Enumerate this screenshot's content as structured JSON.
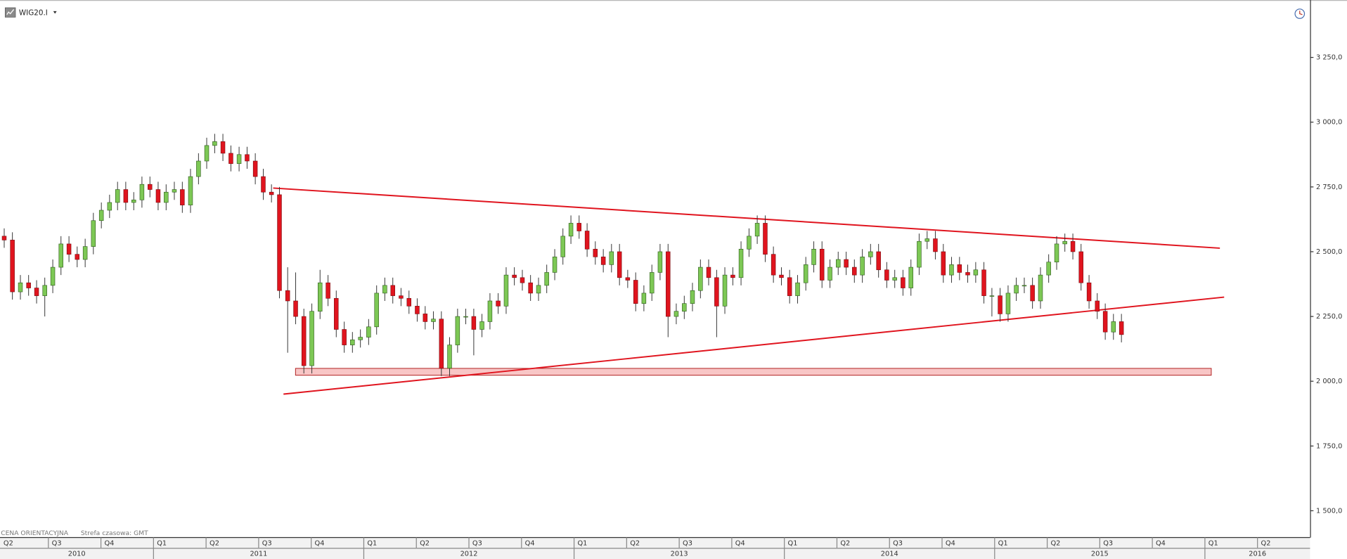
{
  "chart_data": {
    "type": "candlestick",
    "title": "WIG20.I",
    "note": "CENA ORIENTACYJNA",
    "timezone": "Strefa czasowa: GMT",
    "up_color": "#7dc855",
    "down_color": "#e0141e",
    "wick_color": "#333333",
    "ylim": [
      1400,
      3455
    ],
    "yticks": [
      {
        "value": 1500,
        "label": "1 500,0"
      },
      {
        "value": 1750,
        "label": "1 750,0"
      },
      {
        "value": 2000,
        "label": "2 000,0"
      },
      {
        "value": 2250,
        "label": "2 250,0"
      },
      {
        "value": 2500,
        "label": "2 500,0"
      },
      {
        "value": 2750,
        "label": "2 750,0"
      },
      {
        "value": 3000,
        "label": "3 000,0"
      },
      {
        "value": 3250,
        "label": "3 250,0"
      }
    ],
    "xlim": [
      2010.27,
      2016.5
    ],
    "xticks": [
      {
        "value": 2010.25,
        "label": "Q2"
      },
      {
        "value": 2010.5,
        "label": "Q3"
      },
      {
        "value": 2010.75,
        "label": "Q4"
      },
      {
        "value": 2011,
        "label": "Q1"
      },
      {
        "value": 2011.25,
        "label": "Q2"
      },
      {
        "value": 2011.5,
        "label": "Q3"
      },
      {
        "value": 2011.75,
        "label": "Q4"
      },
      {
        "value": 2012,
        "label": "Q1"
      },
      {
        "value": 2012.25,
        "label": "Q2"
      },
      {
        "value": 2012.5,
        "label": "Q3"
      },
      {
        "value": 2012.75,
        "label": "Q4"
      },
      {
        "value": 2013,
        "label": "Q1"
      },
      {
        "value": 2013.25,
        "label": "Q2"
      },
      {
        "value": 2013.5,
        "label": "Q3"
      },
      {
        "value": 2013.75,
        "label": "Q4"
      },
      {
        "value": 2014,
        "label": "Q1"
      },
      {
        "value": 2014.25,
        "label": "Q2"
      },
      {
        "value": 2014.5,
        "label": "Q3"
      },
      {
        "value": 2014.75,
        "label": "Q4"
      },
      {
        "value": 2015,
        "label": "Q1"
      },
      {
        "value": 2015.25,
        "label": "Q2"
      },
      {
        "value": 2015.5,
        "label": "Q3"
      },
      {
        "value": 2015.75,
        "label": "Q4"
      },
      {
        "value": 2016,
        "label": "Q1"
      },
      {
        "value": 2016.25,
        "label": "Q2"
      }
    ],
    "xticks_major": [
      2010,
      2011,
      2012,
      2013,
      2014,
      2015,
      2016
    ],
    "x": [
      2010.29,
      2010.329,
      2010.367,
      2010.406,
      2010.444,
      2010.483,
      2010.521,
      2010.56,
      2010.598,
      2010.637,
      2010.675,
      2010.714,
      2010.752,
      2010.791,
      2010.829,
      2010.868,
      2010.906,
      2010.945,
      2010.983,
      2011.022,
      2011.06,
      2011.099,
      2011.137,
      2011.176,
      2011.214,
      2011.253,
      2011.291,
      2011.33,
      2011.368,
      2011.407,
      2011.445,
      2011.484,
      2011.522,
      2011.561,
      2011.599,
      2011.638,
      2011.676,
      2011.715,
      2011.753,
      2011.792,
      2011.83,
      2011.869,
      2011.907,
      2011.946,
      2011.984,
      2012.023,
      2012.061,
      2012.1,
      2012.138,
      2012.177,
      2012.215,
      2012.254,
      2012.292,
      2012.331,
      2012.369,
      2012.408,
      2012.446,
      2012.485,
      2012.523,
      2012.562,
      2012.6,
      2012.639,
      2012.677,
      2012.716,
      2012.754,
      2012.793,
      2012.831,
      2012.87,
      2012.908,
      2012.947,
      2012.985,
      2013.024,
      2013.062,
      2013.101,
      2013.139,
      2013.178,
      2013.216,
      2013.255,
      2013.293,
      2013.332,
      2013.37,
      2013.409,
      2013.447,
      2013.486,
      2013.524,
      2013.563,
      2013.601,
      2013.64,
      2013.678,
      2013.717,
      2013.755,
      2013.794,
      2013.832,
      2013.871,
      2013.909,
      2013.948,
      2013.986,
      2014.025,
      2014.063,
      2014.102,
      2014.14,
      2014.179,
      2014.217,
      2014.256,
      2014.294,
      2014.333,
      2014.371,
      2014.41,
      2014.448,
      2014.487,
      2014.525,
      2014.564,
      2014.602,
      2014.641,
      2014.679,
      2014.718,
      2014.756,
      2014.795,
      2014.833,
      2014.872,
      2014.91,
      2014.949,
      2014.987,
      2015.026,
      2015.064,
      2015.103,
      2015.141,
      2015.18,
      2015.218,
      2015.257,
      2015.295,
      2015.334,
      2015.372,
      2015.411,
      2015.449,
      2015.488,
      2015.526,
      2015.565,
      2015.603
    ],
    "series": [
      {
        "name": "WIG20.I",
        "open": [
          2560,
          2545,
          2345,
          2380,
          2360,
          2330,
          2370,
          2440,
          2530,
          2490,
          2470,
          2520,
          2620,
          2660,
          2690,
          2740,
          2690,
          2700,
          2760,
          2740,
          2690,
          2730,
          2740,
          2680,
          2790,
          2850,
          2910,
          2925,
          2880,
          2840,
          2875,
          2850,
          2790,
          2730,
          2720,
          2350,
          2310,
          2250,
          2060,
          2270,
          2380,
          2320,
          2200,
          2140,
          2160,
          2170,
          2210,
          2340,
          2370,
          2330,
          2320,
          2290,
          2260,
          2230,
          2240,
          2050,
          2140,
          2250,
          2250,
          2200,
          2230,
          2310,
          2290,
          2410,
          2400,
          2380,
          2340,
          2370,
          2420,
          2480,
          2560,
          2610,
          2580,
          2510,
          2480,
          2450,
          2500,
          2400,
          2390,
          2300,
          2340,
          2420,
          2500,
          2250,
          2270,
          2300,
          2350,
          2440,
          2400,
          2290,
          2410,
          2400,
          2510,
          2560,
          2610,
          2490,
          2410,
          2400,
          2330,
          2380,
          2450,
          2510,
          2390,
          2440,
          2470,
          2440,
          2410,
          2480,
          2500,
          2430,
          2390,
          2400,
          2360,
          2440,
          2540,
          2550,
          2500,
          2410,
          2450,
          2420,
          2410,
          2430,
          2330,
          2330,
          2260,
          2340,
          2370,
          2370,
          2310,
          2410,
          2460,
          2530,
          2540,
          2500,
          2380,
          2310,
          2270,
          2190,
          2230
        ],
        "high": [
          2590,
          2575,
          2410,
          2410,
          2390,
          2400,
          2470,
          2560,
          2560,
          2520,
          2550,
          2650,
          2690,
          2720,
          2770,
          2770,
          2730,
          2790,
          2790,
          2770,
          2760,
          2770,
          2770,
          2820,
          2880,
          2940,
          2955,
          2955,
          2910,
          2905,
          2905,
          2880,
          2820,
          2760,
          2750,
          2440,
          2420,
          2280,
          2300,
          2430,
          2410,
          2350,
          2230,
          2190,
          2200,
          2240,
          2370,
          2400,
          2400,
          2360,
          2350,
          2320,
          2290,
          2270,
          2270,
          2170,
          2280,
          2280,
          2280,
          2260,
          2340,
          2340,
          2440,
          2440,
          2430,
          2410,
          2400,
          2450,
          2510,
          2590,
          2640,
          2640,
          2610,
          2540,
          2510,
          2530,
          2530,
          2430,
          2420,
          2370,
          2450,
          2530,
          2530,
          2300,
          2330,
          2380,
          2470,
          2470,
          2430,
          2440,
          2440,
          2540,
          2590,
          2640,
          2640,
          2520,
          2440,
          2430,
          2410,
          2480,
          2540,
          2540,
          2470,
          2500,
          2500,
          2470,
          2510,
          2530,
          2530,
          2460,
          2430,
          2430,
          2470,
          2570,
          2580,
          2580,
          2530,
          2480,
          2480,
          2450,
          2460,
          2460,
          2360,
          2360,
          2370,
          2400,
          2400,
          2400,
          2440,
          2490,
          2560,
          2570,
          2570,
          2530,
          2410,
          2340,
          2300,
          2260,
          2260
        ],
        "low": [
          2515,
          2315,
          2315,
          2330,
          2300,
          2250,
          2340,
          2410,
          2460,
          2440,
          2440,
          2490,
          2590,
          2630,
          2660,
          2660,
          2660,
          2670,
          2710,
          2660,
          2660,
          2700,
          2650,
          2650,
          2760,
          2820,
          2880,
          2850,
          2810,
          2810,
          2820,
          2760,
          2700,
          2690,
          2320,
          2110,
          2220,
          2030,
          2030,
          2240,
          2290,
          2170,
          2110,
          2110,
          2130,
          2140,
          2180,
          2310,
          2300,
          2290,
          2260,
          2230,
          2200,
          2200,
          2020,
          2020,
          2110,
          2220,
          2100,
          2170,
          2200,
          2260,
          2260,
          2370,
          2350,
          2310,
          2310,
          2340,
          2390,
          2450,
          2530,
          2550,
          2480,
          2450,
          2420,
          2420,
          2370,
          2360,
          2270,
          2270,
          2310,
          2390,
          2170,
          2220,
          2240,
          2270,
          2320,
          2370,
          2170,
          2260,
          2370,
          2370,
          2480,
          2530,
          2460,
          2380,
          2370,
          2300,
          2300,
          2350,
          2420,
          2360,
          2360,
          2410,
          2410,
          2380,
          2380,
          2450,
          2400,
          2360,
          2360,
          2330,
          2330,
          2410,
          2510,
          2470,
          2380,
          2380,
          2390,
          2380,
          2380,
          2300,
          2250,
          2230,
          2230,
          2310,
          2340,
          2280,
          2280,
          2380,
          2430,
          2500,
          2470,
          2350,
          2280,
          2240,
          2160,
          2160,
          2150
        ],
        "close": [
          2545,
          2345,
          2380,
          2360,
          2330,
          2370,
          2440,
          2530,
          2490,
          2470,
          2520,
          2620,
          2660,
          2690,
          2740,
          2690,
          2700,
          2760,
          2740,
          2690,
          2730,
          2740,
          2680,
          2790,
          2850,
          2910,
          2925,
          2880,
          2840,
          2875,
          2850,
          2790,
          2730,
          2720,
          2350,
          2310,
          2250,
          2060,
          2270,
          2380,
          2320,
          2200,
          2140,
          2160,
          2170,
          2210,
          2340,
          2370,
          2330,
          2320,
          2290,
          2260,
          2230,
          2240,
          2050,
          2140,
          2250,
          2250,
          2200,
          2230,
          2310,
          2290,
          2410,
          2400,
          2380,
          2340,
          2370,
          2420,
          2480,
          2560,
          2610,
          2580,
          2510,
          2480,
          2450,
          2500,
          2400,
          2390,
          2300,
          2340,
          2420,
          2500,
          2250,
          2270,
          2300,
          2350,
          2440,
          2400,
          2290,
          2410,
          2400,
          2510,
          2560,
          2610,
          2490,
          2410,
          2400,
          2330,
          2380,
          2450,
          2510,
          2390,
          2440,
          2470,
          2440,
          2410,
          2480,
          2500,
          2430,
          2390,
          2400,
          2360,
          2440,
          2540,
          2550,
          2500,
          2410,
          2450,
          2420,
          2410,
          2430,
          2330,
          2330,
          2260,
          2340,
          2370,
          2370,
          2310,
          2410,
          2460,
          2530,
          2540,
          2500,
          2380,
          2310,
          2270,
          2190,
          2230,
          2180
        ]
      }
    ]
  }
}
